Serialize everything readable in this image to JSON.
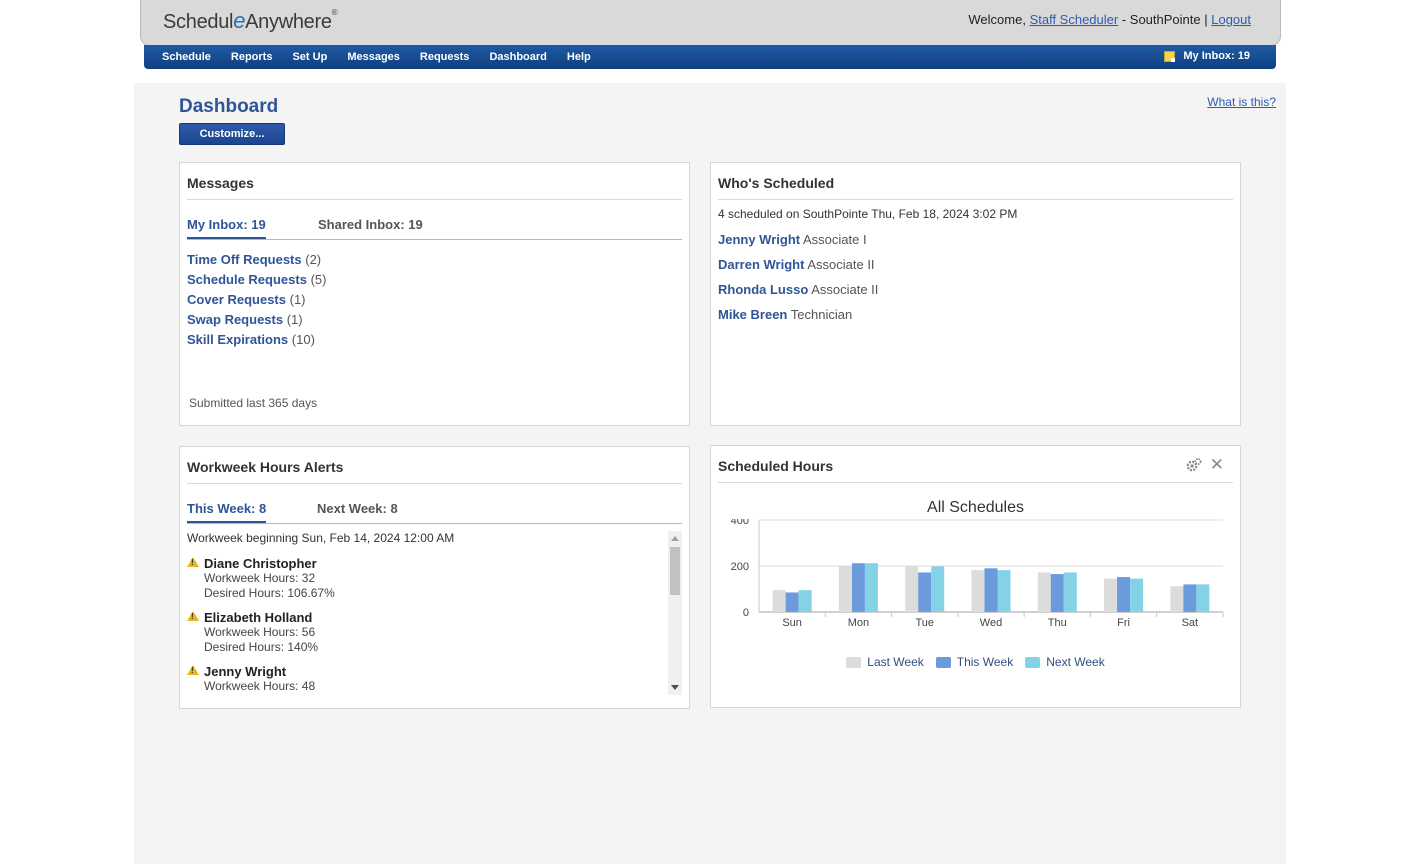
{
  "header": {
    "logo_part1": "Schedul",
    "logo_e": "e",
    "logo_part2": "Anywhere",
    "logo_tm": "®",
    "welcome_prefix": "Welcome,",
    "user_link": "Staff Scheduler",
    "location_text": "- SouthPointe |",
    "logout": "Logout"
  },
  "nav": {
    "items": [
      "Schedule",
      "Reports",
      "Set Up",
      "Messages",
      "Requests",
      "Dashboard",
      "Help"
    ],
    "inbox": "My Inbox: 19"
  },
  "page": {
    "title": "Dashboard",
    "customize": "Customize...",
    "what_is_this": "What is this?"
  },
  "messages": {
    "title": "Messages",
    "tab_my": "My Inbox: 19",
    "tab_shared": "Shared Inbox: 19",
    "requests": [
      {
        "label": "Time Off Requests",
        "count": "(2)"
      },
      {
        "label": "Schedule Requests",
        "count": "(5)"
      },
      {
        "label": "Cover Requests",
        "count": "(1)"
      },
      {
        "label": "Swap Requests",
        "count": "(1)"
      },
      {
        "label": "Skill Expirations",
        "count": "(10)"
      }
    ],
    "footer": "Submitted last 365 days"
  },
  "whos_scheduled": {
    "title": "Who's Scheduled",
    "info": "4 scheduled on SouthPointe Thu, Feb 18, 2024 3:02 PM",
    "people": [
      {
        "name": "Jenny Wright",
        "role": "Associate I"
      },
      {
        "name": "Darren Wright",
        "role": "Associate II"
      },
      {
        "name": "Rhonda Lusso",
        "role": "Associate II"
      },
      {
        "name": "Mike Breen",
        "role": "Technician"
      }
    ]
  },
  "alerts": {
    "title": "Workweek Hours Alerts",
    "tab_this": "This Week: 8",
    "tab_next": "Next Week: 8",
    "week_begin": "Workweek beginning Sun, Feb 14, 2024 12:00 AM",
    "items": [
      {
        "name": "Diane Christopher",
        "hours": "Workweek Hours: 32",
        "desired": "Desired Hours: 106.67%"
      },
      {
        "name": "Elizabeth Holland",
        "hours": "Workweek Hours: 56",
        "desired": "Desired Hours: 140%"
      },
      {
        "name": "Jenny Wright",
        "hours": "Workweek Hours: 48",
        "desired": ""
      }
    ]
  },
  "scheduled_hours": {
    "title": "Scheduled Hours",
    "gear_icon": "gear-icon",
    "close_icon": "close-icon"
  },
  "chart_data": {
    "type": "bar",
    "title": "All Schedules",
    "categories": [
      "Sun",
      "Mon",
      "Tue",
      "Wed",
      "Thu",
      "Fri",
      "Sat"
    ],
    "series": [
      {
        "name": "Last Week",
        "color": "#dcdcdc",
        "values": [
          95,
          198,
          198,
          182,
          172,
          145,
          112
        ]
      },
      {
        "name": "This Week",
        "color": "#6b9bdc",
        "values": [
          85,
          212,
          172,
          190,
          165,
          152,
          120
        ]
      },
      {
        "name": "Next Week",
        "color": "#83d2e6",
        "values": [
          95,
          212,
          198,
          182,
          172,
          145,
          120
        ]
      }
    ],
    "yticks": [
      0,
      200,
      400
    ],
    "ylim": [
      0,
      400
    ],
    "legend_position": "bottom",
    "grid": true
  }
}
